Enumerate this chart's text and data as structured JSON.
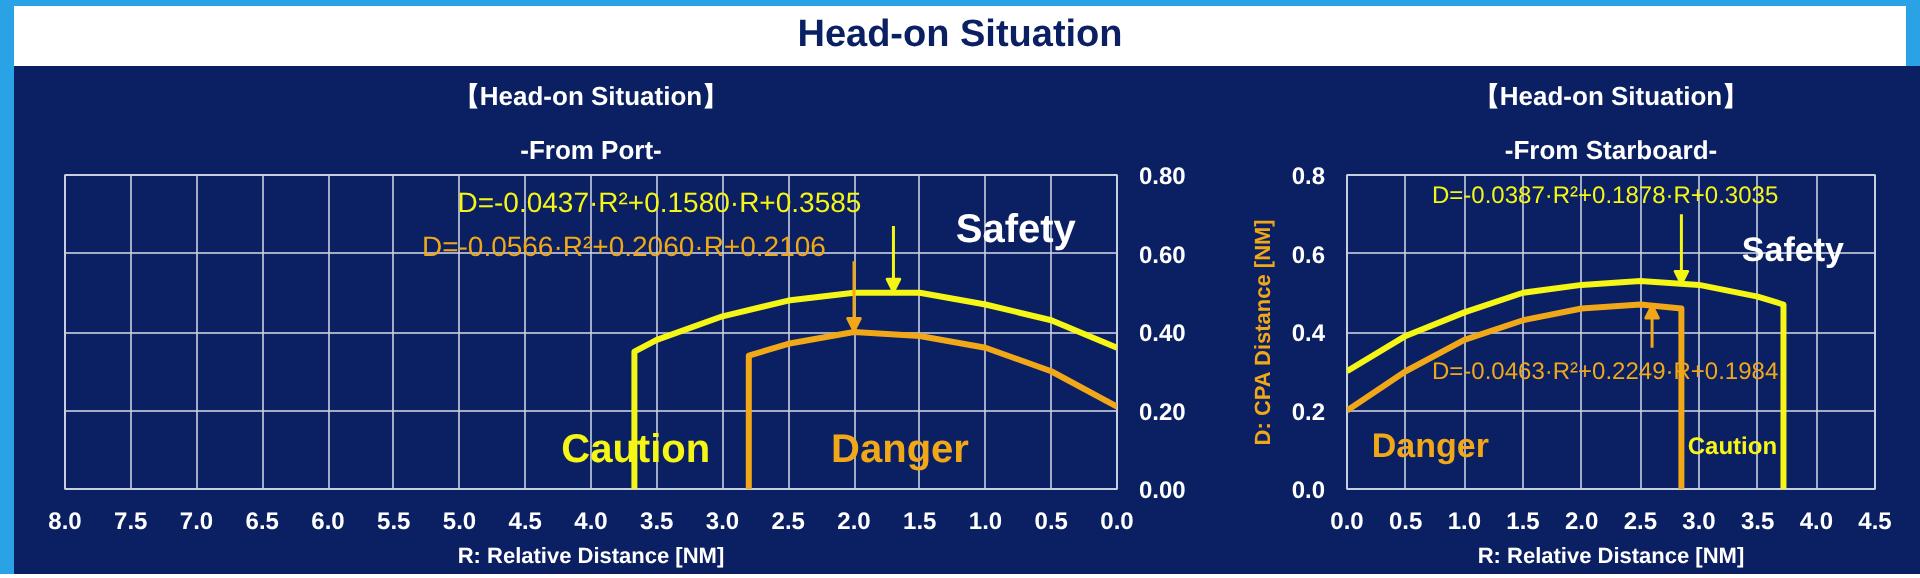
{
  "chart_data": [
    {
      "type": "line",
      "title": "【Head-on Situation】",
      "subtitle": "-From Port-",
      "xlabel": "R: Relative Distance [NM]",
      "annotations": [
        "Head-on Situation",
        {
          "text": "D=-0.0437·R²+0.1580·R+0.3585",
          "x": 1.7,
          "y": 0.5
        },
        {
          "text": "D=-0.0566·R²+0.2060·R+0.2106",
          "x": 2.0,
          "y": 0.4
        },
        "Safety",
        "Caution",
        "Danger"
      ],
      "series": [
        {
          "color": "#f5f516",
          "x": [
            0,
            0.5,
            1,
            1.5,
            2,
            2.5,
            3,
            3.5,
            3.67,
            3.67
          ],
          "values": [
            0.36,
            0.43,
            0.47,
            0.5,
            0.5,
            0.48,
            0.44,
            0.38,
            0.35,
            0
          ]
        },
        {
          "color": "#f0a818",
          "x": [
            0,
            0.5,
            1,
            1.5,
            2,
            2.5,
            2.8,
            2.8
          ],
          "values": [
            0.21,
            0.3,
            0.36,
            0.39,
            0.4,
            0.37,
            0.34,
            0
          ]
        }
      ],
      "xlim": [
        8,
        0
      ],
      "ylim": [
        0,
        0.8
      ],
      "xticks": [
        {
          "value": 8,
          "label": "8.0"
        },
        {
          "value": 7.5,
          "label": "7.5"
        },
        {
          "value": 7,
          "label": "7.0"
        },
        {
          "value": 6.5,
          "label": "6.5"
        },
        {
          "value": 6,
          "label": "6.0"
        },
        {
          "value": 5.5,
          "label": "5.5"
        },
        {
          "value": 5,
          "label": "5.0"
        },
        {
          "value": 4.5,
          "label": "4.5"
        },
        {
          "value": 4,
          "label": "4.0"
        },
        {
          "value": 3.5,
          "label": "3.5"
        },
        {
          "value": 3,
          "label": "3.0"
        },
        {
          "value": 2.5,
          "label": "2.5"
        },
        {
          "value": 2,
          "label": "2.0"
        },
        {
          "value": 1.5,
          "label": "1.5"
        },
        {
          "value": 1,
          "label": "1.0"
        },
        {
          "value": 0.5,
          "label": "0.5"
        },
        {
          "value": 0,
          "label": "0.0"
        }
      ],
      "yticks": [
        {
          "value": 0,
          "label": "0.00"
        },
        {
          "value": 0.2,
          "label": "0.20"
        },
        {
          "value": 0.4,
          "label": "0.40"
        },
        {
          "value": 0.6,
          "label": "0.60"
        },
        {
          "value": 0.8,
          "label": "0.80"
        }
      ],
      "grid": true
    },
    {
      "type": "line",
      "title": "【Head-on Situation】",
      "subtitle": "-From Starboard-",
      "xlabel": "R: Relative Distance [NM]",
      "ylabel": "D: CPA Distance [NM]",
      "annotations": [
        {
          "text": "D=-0.0387·R²+0.1878·R+0.3035",
          "x": 2.85,
          "y": 0.52
        },
        {
          "text": "D=-0.0463·R²+0.2249·R+0.1984",
          "x": 2.6,
          "y": 0.47
        },
        "Safety",
        "Danger",
        "Caution"
      ],
      "series": [
        {
          "color": "#f5f516",
          "x": [
            0,
            0.5,
            1,
            1.5,
            2,
            2.5,
            3,
            3.5,
            3.72,
            3.72
          ],
          "values": [
            0.3,
            0.39,
            0.45,
            0.5,
            0.52,
            0.53,
            0.52,
            0.49,
            0.47,
            0
          ]
        },
        {
          "color": "#f0a818",
          "x": [
            0,
            0.5,
            1,
            1.5,
            2,
            2.5,
            2.85,
            2.85
          ],
          "values": [
            0.2,
            0.3,
            0.38,
            0.43,
            0.46,
            0.47,
            0.46,
            0
          ]
        }
      ],
      "xlim": [
        0,
        4.5
      ],
      "ylim": [
        0,
        0.8
      ],
      "xticks": [
        {
          "value": 0,
          "label": "0.0"
        },
        {
          "value": 0.5,
          "label": "0.5"
        },
        {
          "value": 1,
          "label": "1.0"
        },
        {
          "value": 1.5,
          "label": "1.5"
        },
        {
          "value": 2,
          "label": "2.0"
        },
        {
          "value": 2.5,
          "label": "2.5"
        },
        {
          "value": 3,
          "label": "3.0"
        },
        {
          "value": 3.5,
          "label": "3.5"
        },
        {
          "value": 4,
          "label": "4.0"
        },
        {
          "value": 4.5,
          "label": "4.5"
        }
      ],
      "yticks": [
        {
          "value": 0,
          "label": "0.0"
        },
        {
          "value": 0.2,
          "label": "0.2"
        },
        {
          "value": 0.4,
          "label": "0.4"
        },
        {
          "value": 0.6,
          "label": "0.6"
        },
        {
          "value": 0.8,
          "label": "0.8"
        }
      ],
      "grid": true
    }
  ]
}
